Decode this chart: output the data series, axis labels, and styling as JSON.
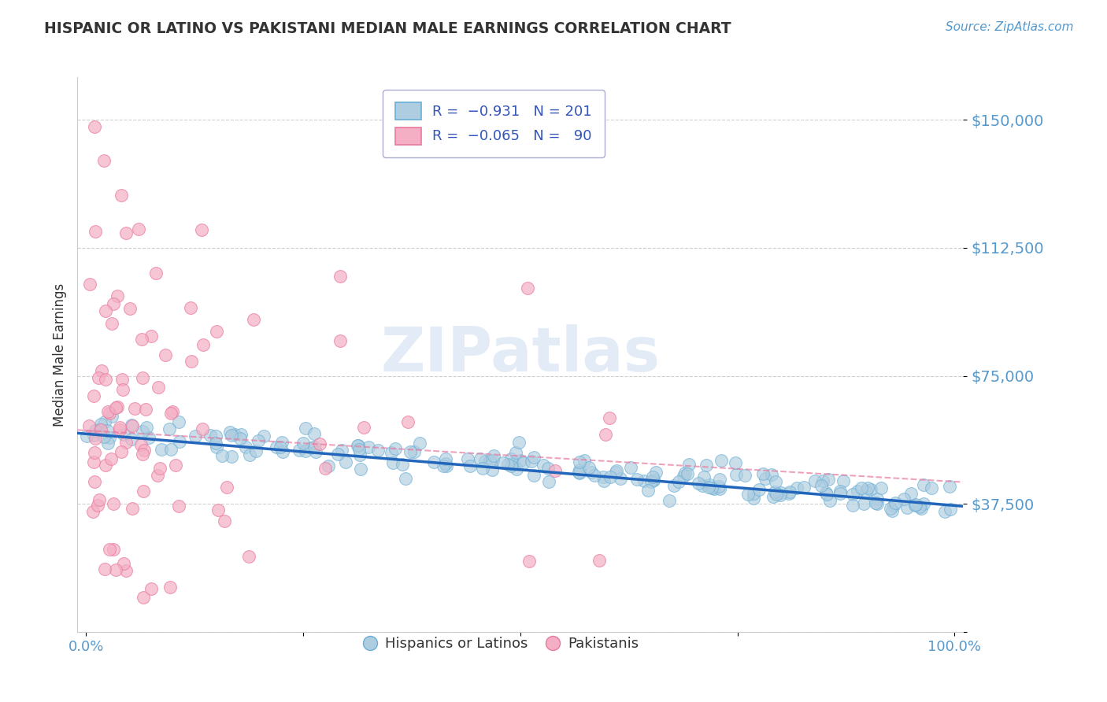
{
  "title": "HISPANIC OR LATINO VS PAKISTANI MEDIAN MALE EARNINGS CORRELATION CHART",
  "source": "Source: ZipAtlas.com",
  "ylabel": "Median Male Earnings",
  "legend_label1": "Hispanics or Latinos",
  "legend_label2": "Pakistanis",
  "r1": -0.931,
  "n1": 201,
  "r2": -0.065,
  "n2": 90,
  "blue_fill": "#aecde0",
  "blue_edge": "#6aafd6",
  "pink_fill": "#f4afc4",
  "pink_edge": "#e87aa0",
  "blue_line": "#2266bb",
  "pink_line": "#e87aa0",
  "title_color": "#333333",
  "axis_color": "#5599cc",
  "legend_r_color": "#3355bb",
  "watermark_color": "#ccddeeff",
  "background_color": "#ffffff",
  "grid_color": "#bbbbbb",
  "yticks": [
    0,
    37500,
    75000,
    112500,
    150000
  ],
  "ytick_labels": [
    "",
    "$37,500",
    "$75,000",
    "$112,500",
    "$150,000"
  ],
  "ylim": [
    0,
    162500
  ],
  "xlim": [
    -0.01,
    1.01
  ]
}
